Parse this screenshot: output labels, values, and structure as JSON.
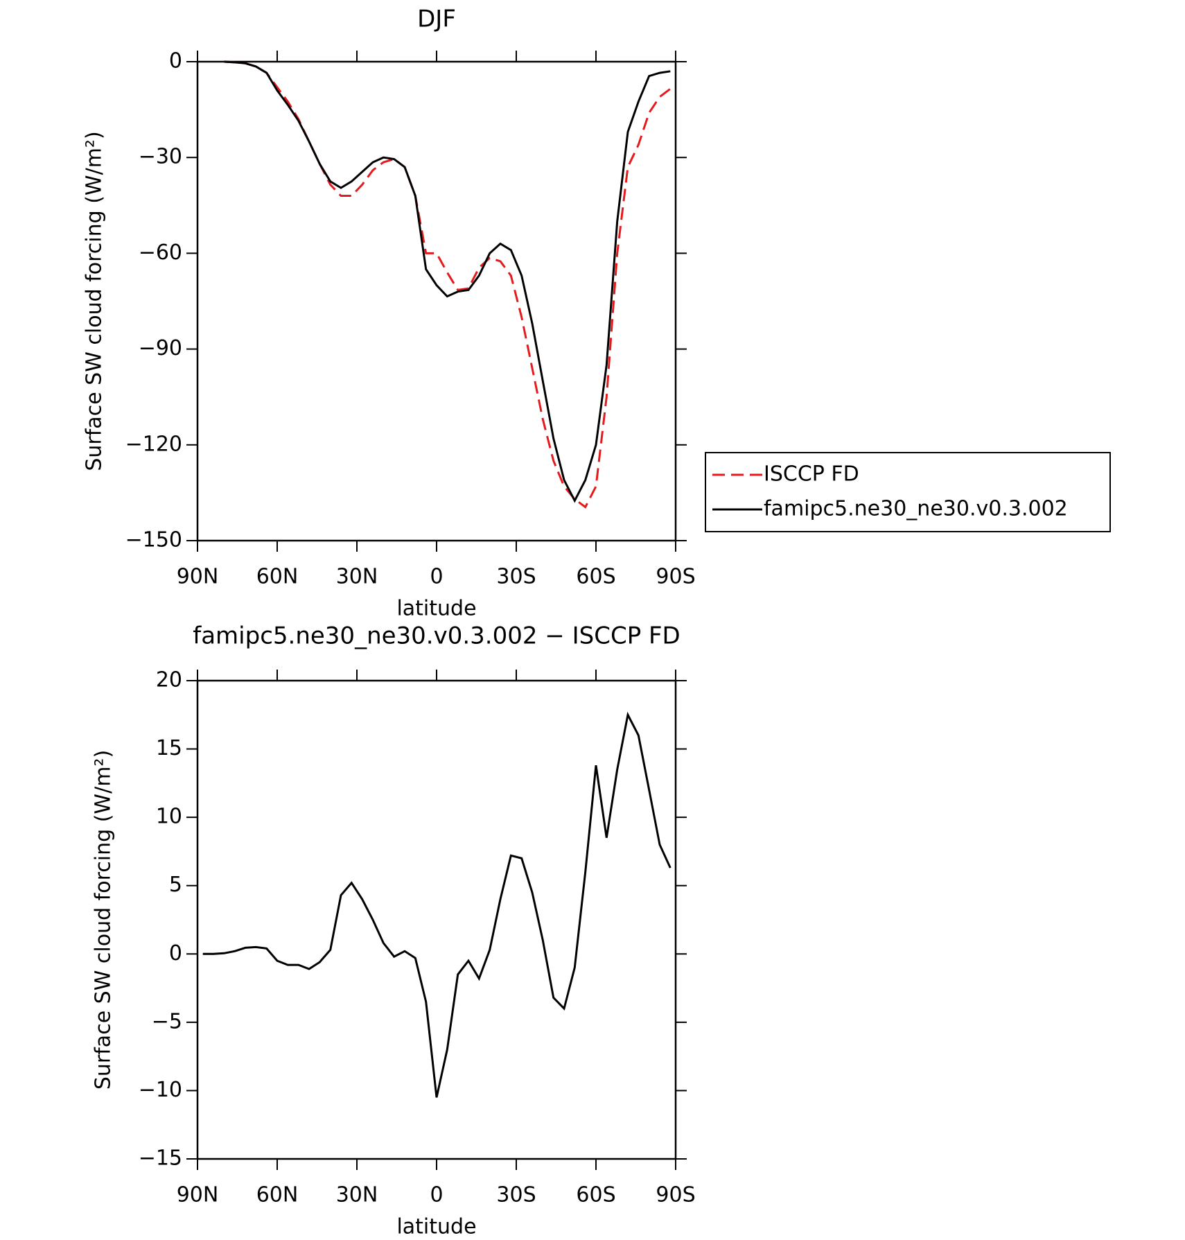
{
  "chart_data": [
    {
      "type": "line",
      "title": "DJF",
      "xlabel": "latitude",
      "ylabel": "Surface SW cloud forcing (W/m²)",
      "x": [
        88,
        84,
        80,
        76,
        72,
        68,
        64,
        60,
        56,
        52,
        48,
        44,
        40,
        36,
        32,
        28,
        24,
        20,
        16,
        12,
        8,
        4,
        0,
        -4,
        -8,
        -12,
        -16,
        -20,
        -24,
        -28,
        -32,
        -36,
        -40,
        -44,
        -48,
        -52,
        -56,
        -60,
        -64,
        -68,
        -72,
        -76,
        -80,
        -84,
        -88
      ],
      "series": [
        {
          "name": "ISCCP FD",
          "color": "#e41a1c",
          "dashed": true,
          "values": [
            null,
            null,
            0,
            -0.2,
            -0.5,
            -1.5,
            -3.5,
            -8,
            -12.5,
            -18,
            -25,
            -32,
            -38.5,
            -42,
            -42,
            -38.5,
            -34,
            -31.5,
            -30.5,
            -33,
            -42,
            -60,
            -60,
            -66,
            -71.5,
            -71,
            -64.5,
            -61.5,
            -62.5,
            -67,
            -80,
            -96,
            -112,
            -125,
            -133,
            -137,
            -139.5,
            -133,
            -105,
            -60,
            -33,
            -26,
            -16,
            -11,
            -8.5
          ]
        },
        {
          "name": "famipc5.ne30_ne30.v0.3.002",
          "color": "#000000",
          "dashed": false,
          "values": [
            null,
            null,
            0,
            -0.2,
            -0.5,
            -1.5,
            -3.5,
            -9,
            -13.5,
            -18.5,
            -25,
            -32,
            -37.5,
            -39.5,
            -37.5,
            -34.5,
            -31.5,
            -30,
            -30.5,
            -33,
            -42,
            -65,
            -70,
            -73.5,
            -72,
            -71.5,
            -67,
            -60,
            -57,
            -59,
            -67,
            -82,
            -100,
            -118,
            -131,
            -137.5,
            -131,
            -120,
            -95,
            -50,
            -22,
            -12.5,
            -4.5,
            -3.5,
            -3
          ]
        }
      ],
      "xlim": [
        90,
        -90
      ],
      "xticks": [
        {
          "value": 90,
          "label": "90N"
        },
        {
          "value": 60,
          "label": "60N"
        },
        {
          "value": 30,
          "label": "30N"
        },
        0,
        {
          "value": -30,
          "label": "30S"
        },
        {
          "value": -60,
          "label": "60S"
        },
        {
          "value": -90,
          "label": "90S"
        }
      ],
      "ylim": [
        -150,
        0
      ],
      "yticks": [
        0,
        {
          "value": -30,
          "label": "−30"
        },
        {
          "value": -60,
          "label": "−60"
        },
        {
          "value": -90,
          "label": "−90"
        },
        {
          "value": -120,
          "label": "−120"
        },
        {
          "value": -150,
          "label": "−150"
        }
      ],
      "legend": "right"
    },
    {
      "type": "line",
      "title": "famipc5.ne30_ne30.v0.3.002 − ISCCP FD",
      "xlabel": "latitude",
      "ylabel": "Surface SW cloud forcing (W/m²)",
      "x": [
        88,
        84,
        80,
        76,
        72,
        68,
        64,
        60,
        56,
        52,
        48,
        44,
        40,
        36,
        32,
        28,
        24,
        20,
        16,
        12,
        8,
        4,
        0,
        -4,
        -8,
        -12,
        -16,
        -20,
        -24,
        -28,
        -32,
        -36,
        -40,
        -44,
        -48,
        -52,
        -56,
        -60,
        -64,
        -68,
        -72,
        -76,
        -80,
        -84,
        -88
      ],
      "series": [
        {
          "color": "#000000",
          "dashed": false,
          "values": [
            0,
            0,
            0.05,
            0.2,
            0.45,
            0.5,
            0.4,
            -0.5,
            -0.8,
            -0.8,
            -1.1,
            -0.6,
            0.3,
            4.3,
            5.2,
            4,
            2.5,
            0.8,
            -0.2,
            0.2,
            -0.3,
            -3.5,
            -10.5,
            -7,
            -1.5,
            -0.5,
            -1.8,
            0.3,
            4,
            7.2,
            7,
            4.5,
            1,
            -3.2,
            -4,
            -1,
            6,
            13.8,
            8.5,
            13.5,
            17.5,
            16,
            12,
            8,
            6.3
          ]
        }
      ],
      "xlim": [
        90,
        -90
      ],
      "xticks": [
        {
          "value": 90,
          "label": "90N"
        },
        {
          "value": 60,
          "label": "60N"
        },
        {
          "value": 30,
          "label": "30N"
        },
        0,
        {
          "value": -30,
          "label": "30S"
        },
        {
          "value": -60,
          "label": "60S"
        },
        {
          "value": -90,
          "label": "90S"
        }
      ],
      "ylim": [
        -15,
        20
      ],
      "yticks": [
        20,
        15,
        10,
        5,
        0,
        {
          "value": -5,
          "label": "−5"
        },
        {
          "value": -10,
          "label": "−10"
        },
        {
          "value": -15,
          "label": "−15"
        }
      ]
    }
  ]
}
